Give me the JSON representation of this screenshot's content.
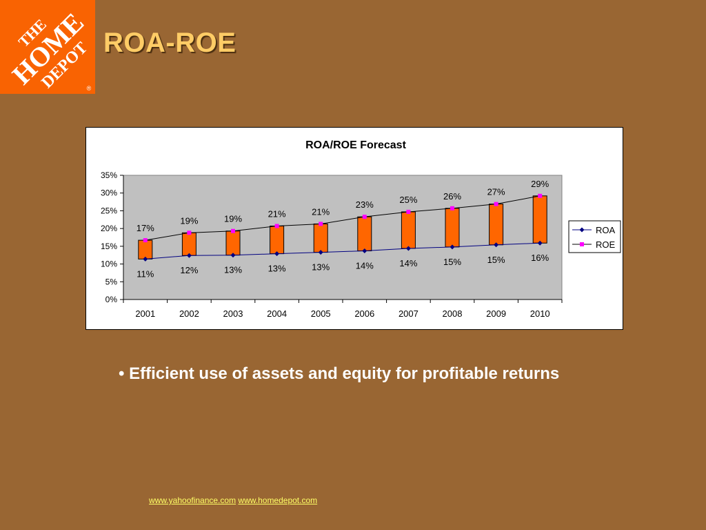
{
  "slide": {
    "title": "ROA-ROE",
    "bullet_marker": "•",
    "bullet": "Efficient use of assets and equity for profitable returns"
  },
  "logo": {
    "line1": "THE",
    "line2": "HOME",
    "line3": "DEPOT",
    "registered": "®",
    "brand_color": "#f96302"
  },
  "footer": {
    "link1": "www.yahoofinance.com",
    "link2": "www.homedepot.com"
  },
  "colors": {
    "background": "#996633",
    "title": "#ffcc66",
    "plot_area": "#c0c0c0",
    "bar_fill": "#ff6600",
    "roa_line": "#000080",
    "roe_marker": "#ff00ff",
    "roe_line": "#000000"
  },
  "chart_data": {
    "type": "line",
    "title": "ROA/ROE Forecast",
    "categories": [
      "2001",
      "2002",
      "2003",
      "2004",
      "2005",
      "2006",
      "2007",
      "2008",
      "2009",
      "2010"
    ],
    "series": [
      {
        "name": "ROA",
        "values": [
          11.4,
          12.4,
          12.5,
          12.9,
          13.3,
          13.7,
          14.4,
          14.8,
          15.4,
          15.9
        ],
        "labels": [
          "11%",
          "12%",
          "13%",
          "13%",
          "13%",
          "14%",
          "14%",
          "15%",
          "15%",
          "16%"
        ]
      },
      {
        "name": "ROE",
        "values": [
          16.7,
          18.8,
          19.3,
          20.7,
          21.3,
          23.3,
          24.7,
          25.7,
          26.9,
          29.2
        ],
        "labels": [
          "17%",
          "19%",
          "19%",
          "21%",
          "21%",
          "23%",
          "25%",
          "26%",
          "27%",
          "29%"
        ]
      }
    ],
    "y_ticks": [
      "0%",
      "5%",
      "10%",
      "15%",
      "20%",
      "25%",
      "30%",
      "35%"
    ],
    "ylim": [
      0,
      35
    ],
    "legend": "right",
    "grid": false
  }
}
